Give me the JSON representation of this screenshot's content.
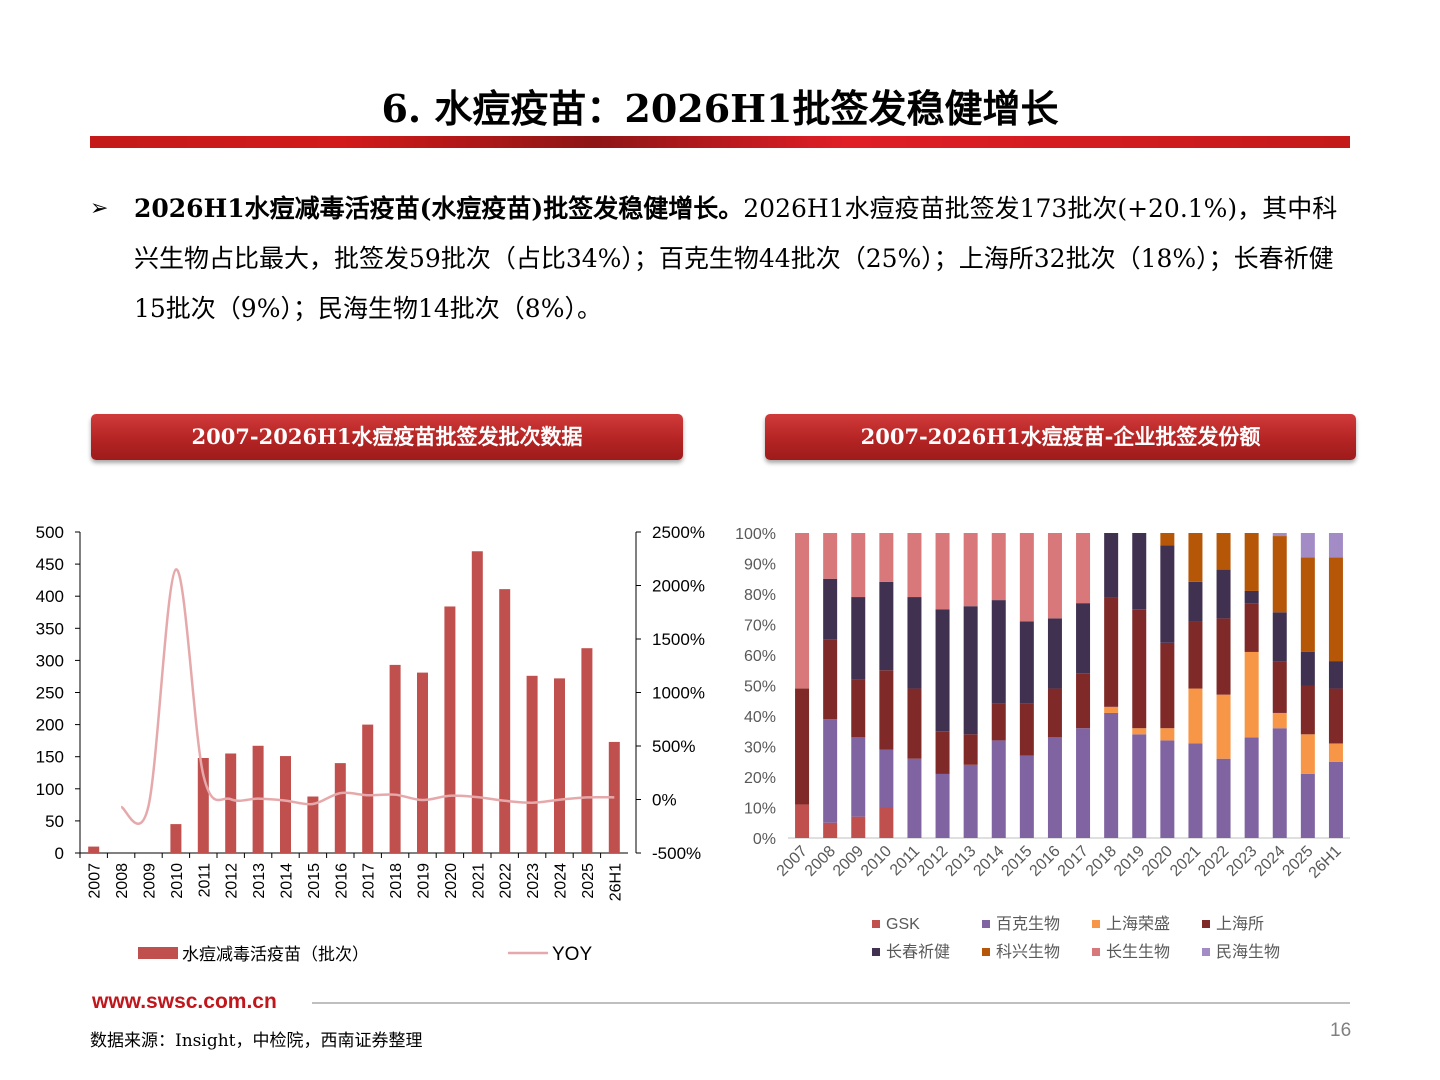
{
  "title": "6. 水痘疫苗：2026H1批签发稳健增长",
  "bullet": {
    "marker": "➢",
    "bold": "2026H1水痘减毒活疫苗(水痘疫苗)批签发稳健增长。",
    "text": "2026H1水痘疫苗批签发173批次(+20.1%)，其中科兴生物占比最大，批签发59批次（占比34%）；百克生物44批次（25%）；上海所32批次（18%）；长春祈健15批次（9%）；民海生物14批次（8%）。"
  },
  "headers": {
    "left": "2007-2026H1水痘疫苗批签发批次数据",
    "right": "2007-2026H1水痘疫苗-企业批签发份额"
  },
  "chart_data": [
    {
      "type": "bar",
      "categories": [
        "2007",
        "2008",
        "2009",
        "2010",
        "2011",
        "2012",
        "2013",
        "2014",
        "2015",
        "2016",
        "2017",
        "2018",
        "2019",
        "2020",
        "2021",
        "2022",
        "2023",
        "2024",
        "2025",
        "26H1"
      ],
      "series": [
        {
          "name": "水痘减毒活疫苗（批次）",
          "type": "bar",
          "axis": "left",
          "color": "#c0504d",
          "values": [
            10,
            0,
            0,
            45,
            148,
            155,
            167,
            151,
            88,
            140,
            200,
            293,
            281,
            384,
            470,
            411,
            276,
            272,
            319,
            173
          ]
        },
        {
          "name": "YOY",
          "type": "line",
          "axis": "right",
          "color": "#e6a9ab",
          "values": [
            null,
            -70,
            -60,
            2150,
            230,
            3,
            8,
            -10,
            -42,
            60,
            40,
            45,
            -5,
            35,
            22,
            -12,
            -30,
            -2,
            20,
            20
          ]
        }
      ],
      "ylim": [
        0,
        500
      ],
      "yticks": [
        0,
        50,
        100,
        150,
        200,
        250,
        300,
        350,
        400,
        450,
        500
      ],
      "y2lim": [
        -500,
        2500
      ],
      "y2ticks": [
        "-500%",
        "0%",
        "500%",
        "1000%",
        "1500%",
        "2000%",
        "2500%"
      ],
      "legend_position": "bottom"
    },
    {
      "type": "bar",
      "stacked": true,
      "percent": true,
      "categories": [
        "2007",
        "2008",
        "2009",
        "2010",
        "2011",
        "2012",
        "2013",
        "2014",
        "2015",
        "2016",
        "2017",
        "2018",
        "2019",
        "2020",
        "2021",
        "2022",
        "2023",
        "2024",
        "2025",
        "26H1"
      ],
      "series": [
        {
          "name": "GSK",
          "color": "#c0504d",
          "values": [
            11,
            5,
            7,
            10,
            0,
            0,
            0,
            0,
            0,
            0,
            0,
            0,
            0,
            0,
            0,
            0,
            0,
            0,
            0,
            0
          ]
        },
        {
          "name": "百克生物",
          "color": "#8064a2",
          "values": [
            0,
            34,
            26,
            19,
            26,
            21,
            24,
            32,
            27,
            33,
            36,
            41,
            34,
            32,
            31,
            26,
            33,
            36,
            21,
            25
          ]
        },
        {
          "name": "上海荣盛",
          "color": "#f79646",
          "values": [
            0,
            0,
            0,
            0,
            0,
            0,
            0,
            0,
            0,
            0,
            0,
            2,
            2,
            4,
            18,
            21,
            28,
            5,
            13,
            6
          ]
        },
        {
          "name": "上海所",
          "color": "#7f2a28",
          "values": [
            38,
            26,
            19,
            26,
            23,
            14,
            10,
            12,
            17,
            16,
            18,
            36,
            39,
            28,
            22,
            25,
            16,
            17,
            16,
            18
          ]
        },
        {
          "name": "长春祈健",
          "color": "#403151",
          "values": [
            0,
            20,
            27,
            29,
            30,
            40,
            42,
            34,
            27,
            23,
            23,
            21,
            25,
            32,
            13,
            16,
            4,
            16,
            11,
            9
          ]
        },
        {
          "name": "科兴生物",
          "color": "#b65708",
          "values": [
            0,
            0,
            0,
            0,
            0,
            0,
            0,
            0,
            0,
            0,
            0,
            0,
            0,
            4,
            16,
            12,
            19,
            25,
            31,
            34
          ]
        },
        {
          "name": "长生生物",
          "color": "#d9787b",
          "values": [
            51,
            15,
            21,
            16,
            21,
            25,
            24,
            22,
            29,
            28,
            23,
            0,
            0,
            0,
            0,
            0,
            0,
            0,
            0,
            0
          ]
        },
        {
          "name": "民海生物",
          "color": "#a38cc6",
          "values": [
            0,
            0,
            0,
            0,
            0,
            0,
            0,
            0,
            0,
            0,
            0,
            0,
            0,
            0,
            0,
            0,
            0,
            1,
            8,
            8
          ]
        }
      ],
      "ylim": [
        0,
        100
      ],
      "yticks": [
        "0%",
        "10%",
        "20%",
        "30%",
        "40%",
        "50%",
        "60%",
        "70%",
        "80%",
        "90%",
        "100%"
      ],
      "legend_position": "bottom"
    }
  ],
  "footer": {
    "url": "www.swsc.com.cn",
    "source": "数据来源：Insight，中检院，西南证券整理",
    "page": "16"
  }
}
